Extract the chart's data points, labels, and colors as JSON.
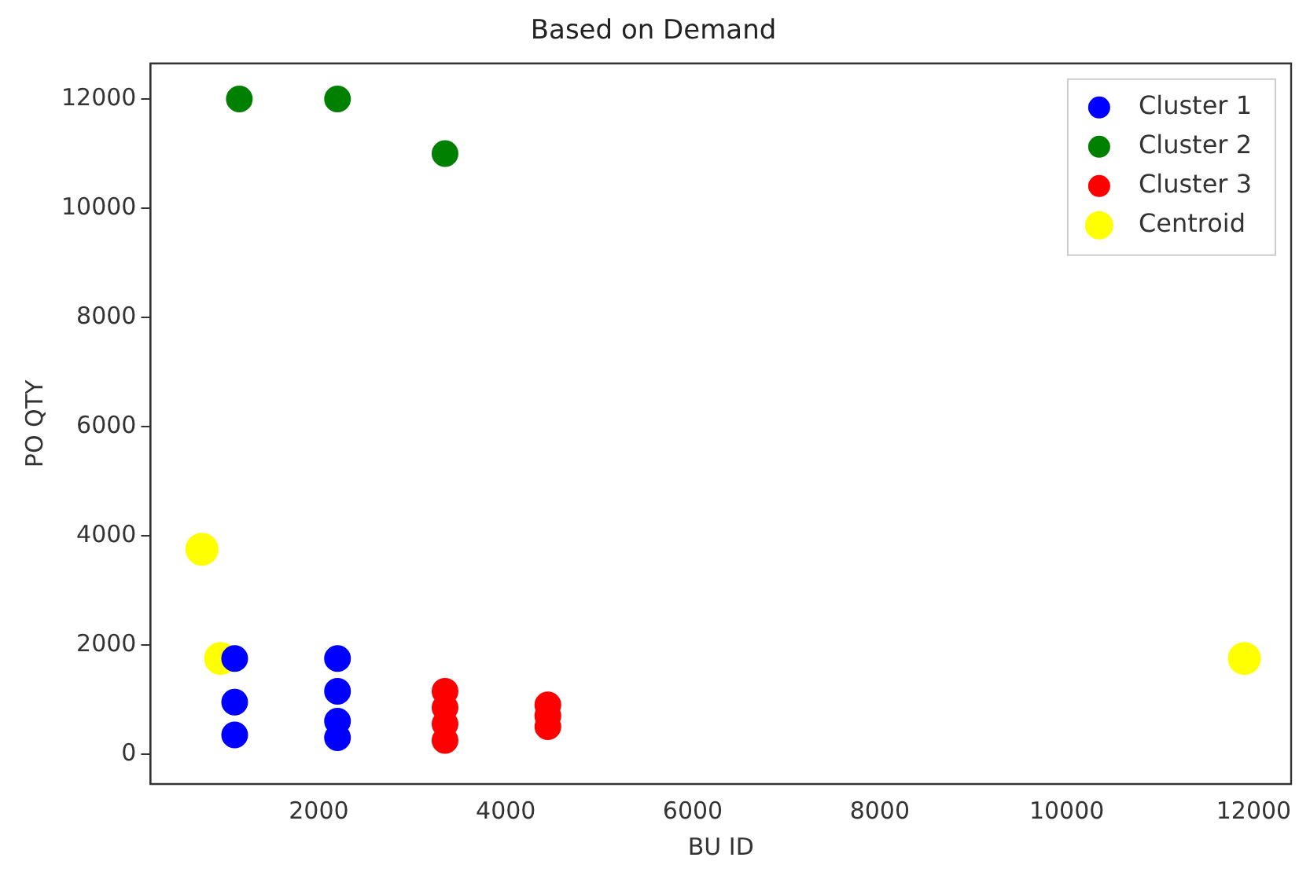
{
  "chart_data": {
    "type": "scatter",
    "title": "Based on Demand",
    "xlabel": "BU ID",
    "ylabel": "PO QTY",
    "xlim": [
      200,
      12400
    ],
    "ylim": [
      -550,
      12650
    ],
    "xticks": [
      2000,
      4000,
      6000,
      8000,
      10000,
      12000
    ],
    "yticks": [
      0,
      2000,
      4000,
      6000,
      8000,
      10000,
      12000
    ],
    "grid": false,
    "legend": "top right",
    "marker": "circle",
    "series": [
      {
        "name": "Cluster 1",
        "color": "#0000ff",
        "x": [
          1100,
          1100,
          1100,
          2200,
          2200,
          2200,
          2200
        ],
        "values": [
          1750,
          950,
          350,
          1750,
          1150,
          600,
          300
        ]
      },
      {
        "name": "Cluster 2",
        "color": "#008000",
        "x": [
          1150,
          2200,
          3350
        ],
        "values": [
          12000,
          12000,
          11000
        ]
      },
      {
        "name": "Cluster 3",
        "color": "#ff0000",
        "x": [
          3350,
          3350,
          3350,
          3350,
          4450,
          4450,
          4450
        ],
        "values": [
          1150,
          850,
          550,
          250,
          900,
          700,
          500
        ]
      },
      {
        "name": "Centroid",
        "color": "#ffff00",
        "x": [
          750,
          950,
          11900
        ],
        "values": [
          3750,
          1750,
          1750
        ]
      }
    ]
  }
}
